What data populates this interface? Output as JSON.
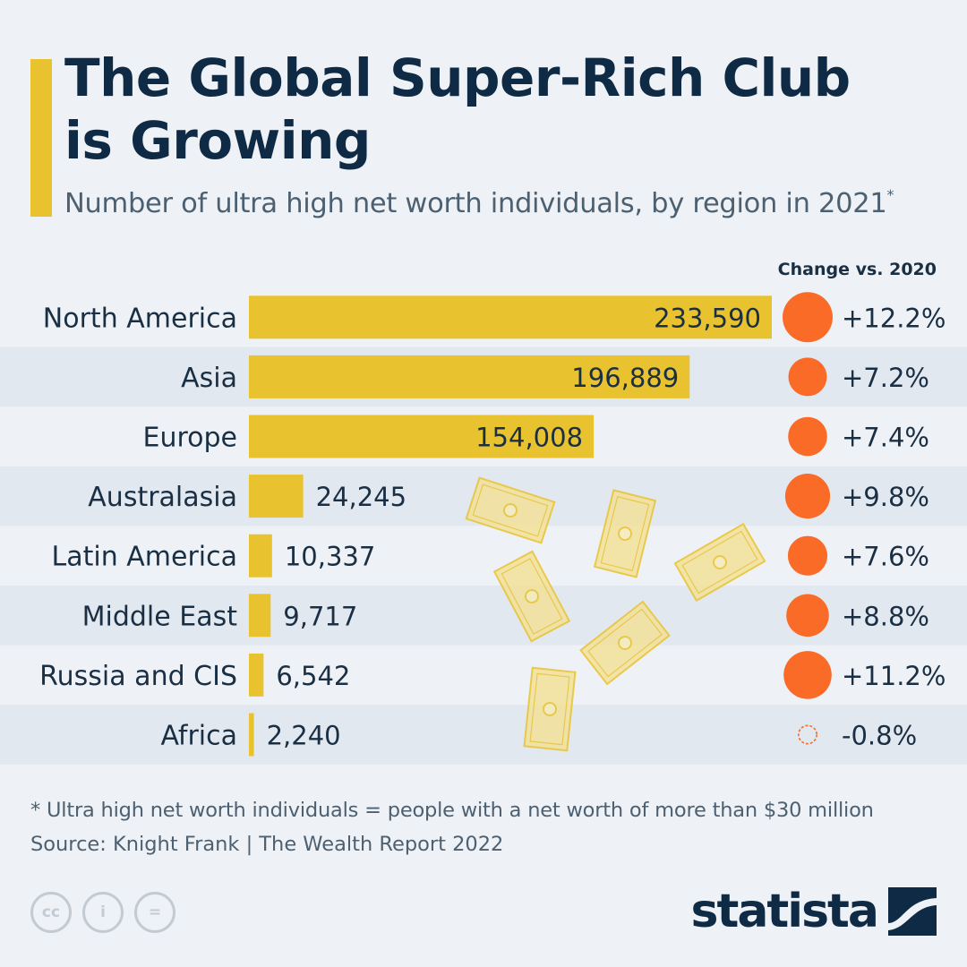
{
  "title_line1": "The Global Super-Rich Club",
  "title_line2": "is Growing",
  "subtitle": "Number of ultra high net worth individuals, by region in 2021",
  "subtitle_mark": "*",
  "footnote": "* Ultra high net worth individuals = people with a net worth of more than $30 million",
  "source": "Source: Knight Frank | The Wealth Report 2022",
  "brand": "statista",
  "license_icons": [
    "cc",
    "i",
    "="
  ],
  "colors": {
    "bar": "#e9c32f",
    "circle": "#fa6b28",
    "text_dark": "#1a2f44",
    "band": "#e2e8ef"
  },
  "chart_data": {
    "type": "bar",
    "orientation": "horizontal",
    "title": "The Global Super-Rich Club is Growing",
    "xlabel": "",
    "ylabel": "",
    "categories": [
      "North America",
      "Asia",
      "Europe",
      "Australasia",
      "Latin America",
      "Middle East",
      "Russia and CIS",
      "Africa"
    ],
    "values": [
      233590,
      196889,
      154008,
      24245,
      10337,
      9717,
      6542,
      2240
    ],
    "value_labels": [
      "233,590",
      "196,889",
      "154,008",
      "24,245",
      "10,337",
      "9,717",
      "6,542",
      "2,240"
    ],
    "xlim": [
      0,
      233590
    ],
    "change_header": "Change vs. 2020",
    "change_values": [
      12.2,
      7.2,
      7.4,
      9.8,
      7.6,
      8.8,
      11.2,
      -0.8
    ],
    "change_labels": [
      "+12.2%",
      "+7.2%",
      "+7.4%",
      "+9.8%",
      "+7.6%",
      "+8.8%",
      "+11.2%",
      "-0.8%"
    ]
  }
}
